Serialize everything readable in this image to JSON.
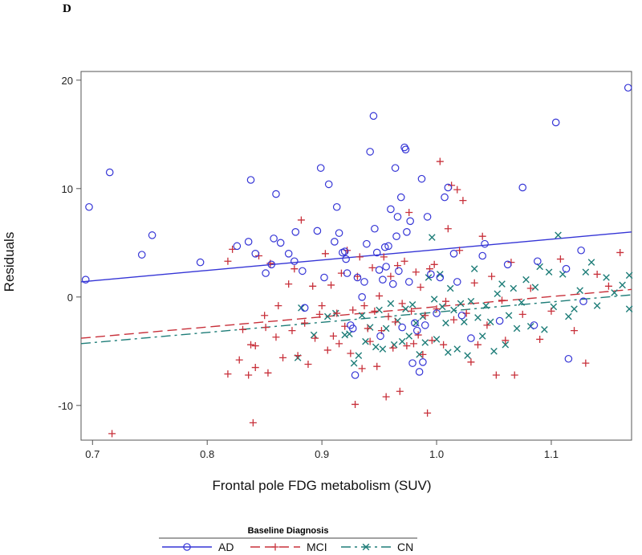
{
  "panel_label": "D",
  "chart_data": {
    "type": "scatter",
    "title": "",
    "xlabel": "Frontal pole FDG metabolism (SUV)",
    "ylabel": "Residuals",
    "xlim": [
      0.69,
      1.17
    ],
    "ylim": [
      -13.2,
      20.8
    ],
    "xticks": [
      0.7,
      0.8,
      0.9,
      1.0,
      1.1
    ],
    "xtick_labels": [
      "0.7",
      "0.8",
      "0.9",
      "1.0",
      "1.1"
    ],
    "yticks": [
      -10,
      0,
      10,
      20
    ],
    "ytick_labels": [
      "-10",
      "0",
      "10",
      "20"
    ],
    "grid": false,
    "legend": {
      "title": "Baseline Diagnosis",
      "position": "bottom",
      "entries": [
        "AD",
        "MCI",
        "CN"
      ]
    },
    "series": [
      {
        "name": "AD",
        "color": "#3535d6",
        "marker": "circle",
        "line_style": "solid",
        "fit": [
          [
            0.69,
            1.4
          ],
          [
            1.17,
            6.0
          ]
        ],
        "points": [
          [
            0.694,
            1.6
          ],
          [
            0.697,
            8.3
          ],
          [
            0.715,
            11.5
          ],
          [
            0.743,
            3.9
          ],
          [
            0.752,
            5.7
          ],
          [
            0.794,
            3.2
          ],
          [
            0.826,
            4.7
          ],
          [
            0.836,
            5.1
          ],
          [
            0.838,
            10.8
          ],
          [
            0.842,
            4.0
          ],
          [
            0.851,
            2.2
          ],
          [
            0.856,
            3.0
          ],
          [
            0.858,
            5.4
          ],
          [
            0.86,
            9.5
          ],
          [
            0.864,
            5.0
          ],
          [
            0.871,
            4.0
          ],
          [
            0.876,
            3.3
          ],
          [
            0.877,
            6.0
          ],
          [
            0.883,
            2.4
          ],
          [
            0.885,
            -1.0
          ],
          [
            0.896,
            6.1
          ],
          [
            0.899,
            11.9
          ],
          [
            0.902,
            1.8
          ],
          [
            0.906,
            10.4
          ],
          [
            0.911,
            5.1
          ],
          [
            0.913,
            8.3
          ],
          [
            0.915,
            5.9
          ],
          [
            0.918,
            4.1
          ],
          [
            0.92,
            4.2
          ],
          [
            0.921,
            3.5
          ],
          [
            0.922,
            2.2
          ],
          [
            0.925,
            -2.6
          ],
          [
            0.927,
            -2.9
          ],
          [
            0.929,
            -7.2
          ],
          [
            0.931,
            1.8
          ],
          [
            0.935,
            0.0
          ],
          [
            0.937,
            1.4
          ],
          [
            0.939,
            4.9
          ],
          [
            0.942,
            13.4
          ],
          [
            0.945,
            16.7
          ],
          [
            0.946,
            6.3
          ],
          [
            0.948,
            4.1
          ],
          [
            0.95,
            2.5
          ],
          [
            0.951,
            -3.6
          ],
          [
            0.953,
            1.6
          ],
          [
            0.955,
            4.6
          ],
          [
            0.956,
            2.8
          ],
          [
            0.958,
            4.7
          ],
          [
            0.96,
            8.1
          ],
          [
            0.962,
            1.2
          ],
          [
            0.964,
            11.9
          ],
          [
            0.965,
            5.6
          ],
          [
            0.966,
            7.4
          ],
          [
            0.967,
            2.4
          ],
          [
            0.969,
            9.2
          ],
          [
            0.97,
            -2.8
          ],
          [
            0.972,
            13.8
          ],
          [
            0.973,
            13.6
          ],
          [
            0.974,
            6.0
          ],
          [
            0.976,
            1.4
          ],
          [
            0.977,
            7.0
          ],
          [
            0.979,
            -6.1
          ],
          [
            0.981,
            -2.4
          ],
          [
            0.983,
            -3.1
          ],
          [
            0.985,
            -6.9
          ],
          [
            0.987,
            10.9
          ],
          [
            0.988,
            -6.0
          ],
          [
            0.99,
            -2.6
          ],
          [
            0.992,
            7.4
          ],
          [
            0.995,
            2.1
          ],
          [
            1.0,
            -1.5
          ],
          [
            1.003,
            1.8
          ],
          [
            1.007,
            9.2
          ],
          [
            1.01,
            10.1
          ],
          [
            1.015,
            4.0
          ],
          [
            1.018,
            1.4
          ],
          [
            1.022,
            -1.7
          ],
          [
            1.03,
            -3.8
          ],
          [
            1.04,
            3.8
          ],
          [
            1.042,
            4.9
          ],
          [
            1.055,
            -2.2
          ],
          [
            1.062,
            3.0
          ],
          [
            1.075,
            10.1
          ],
          [
            1.085,
            -2.6
          ],
          [
            1.088,
            3.3
          ],
          [
            1.104,
            16.1
          ],
          [
            1.113,
            2.6
          ],
          [
            1.115,
            -5.7
          ],
          [
            1.126,
            4.3
          ],
          [
            1.128,
            -0.4
          ],
          [
            1.167,
            19.3
          ]
        ]
      },
      {
        "name": "MCI",
        "color": "#c8303a",
        "marker": "plus",
        "line_style": "dashed",
        "fit": [
          [
            0.69,
            -3.8
          ],
          [
            1.17,
            0.7
          ]
        ],
        "points": [
          [
            0.717,
            -12.6
          ],
          [
            0.818,
            3.3
          ],
          [
            0.818,
            -7.1
          ],
          [
            0.822,
            4.4
          ],
          [
            0.828,
            -5.8
          ],
          [
            0.831,
            -3.0
          ],
          [
            0.836,
            -7.2
          ],
          [
            0.838,
            -4.4
          ],
          [
            0.84,
            -11.6
          ],
          [
            0.842,
            -4.5
          ],
          [
            0.842,
            -6.5
          ],
          [
            0.845,
            3.8
          ],
          [
            0.85,
            -1.7
          ],
          [
            0.851,
            -2.8
          ],
          [
            0.853,
            -7.0
          ],
          [
            0.855,
            3.1
          ],
          [
            0.86,
            -3.7
          ],
          [
            0.862,
            -0.8
          ],
          [
            0.866,
            -5.6
          ],
          [
            0.871,
            1.2
          ],
          [
            0.874,
            -3.1
          ],
          [
            0.876,
            2.6
          ],
          [
            0.879,
            -5.4
          ],
          [
            0.882,
            7.1
          ],
          [
            0.885,
            -2.4
          ],
          [
            0.888,
            -6.2
          ],
          [
            0.892,
            1.0
          ],
          [
            0.894,
            -3.8
          ],
          [
            0.898,
            -1.6
          ],
          [
            0.9,
            -0.8
          ],
          [
            0.903,
            4.0
          ],
          [
            0.905,
            -4.9
          ],
          [
            0.908,
            1.1
          ],
          [
            0.91,
            -3.6
          ],
          [
            0.913,
            -1.5
          ],
          [
            0.915,
            -4.3
          ],
          [
            0.917,
            2.2
          ],
          [
            0.92,
            -2.7
          ],
          [
            0.922,
            4.3
          ],
          [
            0.925,
            -5.2
          ],
          [
            0.927,
            -1.2
          ],
          [
            0.929,
            -9.9
          ],
          [
            0.931,
            1.9
          ],
          [
            0.933,
            3.7
          ],
          [
            0.935,
            -6.6
          ],
          [
            0.937,
            -0.8
          ],
          [
            0.94,
            -2.9
          ],
          [
            0.942,
            -4.1
          ],
          [
            0.944,
            2.7
          ],
          [
            0.946,
            -1.3
          ],
          [
            0.948,
            -6.4
          ],
          [
            0.95,
            0.1
          ],
          [
            0.952,
            -3.1
          ],
          [
            0.954,
            3.7
          ],
          [
            0.956,
            -9.2
          ],
          [
            0.958,
            -1.8
          ],
          [
            0.96,
            1.9
          ],
          [
            0.962,
            -4.7
          ],
          [
            0.964,
            -2.3
          ],
          [
            0.966,
            2.9
          ],
          [
            0.968,
            -8.7
          ],
          [
            0.97,
            -0.6
          ],
          [
            0.972,
            3.3
          ],
          [
            0.974,
            -4.5
          ],
          [
            0.976,
            7.8
          ],
          [
            0.978,
            -1.3
          ],
          [
            0.98,
            -4.3
          ],
          [
            0.982,
            2.3
          ],
          [
            0.984,
            -3.5
          ],
          [
            0.986,
            0.9
          ],
          [
            0.988,
            -5.3
          ],
          [
            0.99,
            -1.7
          ],
          [
            0.992,
            -10.7
          ],
          [
            0.994,
            2.6
          ],
          [
            0.996,
            -4.0
          ],
          [
            0.998,
            3.0
          ],
          [
            1.0,
            -1.1
          ],
          [
            1.003,
            12.5
          ],
          [
            1.006,
            -4.4
          ],
          [
            1.008,
            -0.4
          ],
          [
            1.01,
            6.3
          ],
          [
            1.013,
            10.3
          ],
          [
            1.015,
            -2.1
          ],
          [
            1.018,
            9.9
          ],
          [
            1.02,
            4.3
          ],
          [
            1.023,
            8.9
          ],
          [
            1.026,
            -1.5
          ],
          [
            1.03,
            -6.0
          ],
          [
            1.033,
            1.3
          ],
          [
            1.036,
            -4.4
          ],
          [
            1.04,
            5.6
          ],
          [
            1.044,
            -2.6
          ],
          [
            1.048,
            1.9
          ],
          [
            1.052,
            -7.2
          ],
          [
            1.057,
            -0.3
          ],
          [
            1.06,
            -4.0
          ],
          [
            1.065,
            3.2
          ],
          [
            1.068,
            -7.2
          ],
          [
            1.075,
            -1.6
          ],
          [
            1.082,
            0.8
          ],
          [
            1.09,
            -3.9
          ],
          [
            1.1,
            -1.3
          ],
          [
            1.108,
            3.5
          ],
          [
            1.12,
            -3.1
          ],
          [
            1.13,
            -6.1
          ],
          [
            1.14,
            2.1
          ],
          [
            1.15,
            1.0
          ],
          [
            1.16,
            4.1
          ]
        ]
      },
      {
        "name": "CN",
        "color": "#1e7d78",
        "marker": "x",
        "line_style": "dashdot",
        "fit": [
          [
            0.69,
            -4.3
          ],
          [
            1.17,
            0.2
          ]
        ],
        "points": [
          [
            0.879,
            -5.6
          ],
          [
            0.882,
            -1.0
          ],
          [
            0.893,
            -3.5
          ],
          [
            0.905,
            -1.8
          ],
          [
            0.912,
            -1.5
          ],
          [
            0.92,
            -3.5
          ],
          [
            0.924,
            -3.4
          ],
          [
            0.928,
            -6.1
          ],
          [
            0.932,
            -5.4
          ],
          [
            0.935,
            -1.7
          ],
          [
            0.938,
            -4.1
          ],
          [
            0.942,
            -2.8
          ],
          [
            0.947,
            -4.6
          ],
          [
            0.95,
            -1.2
          ],
          [
            0.953,
            -4.8
          ],
          [
            0.956,
            -2.9
          ],
          [
            0.96,
            -0.6
          ],
          [
            0.963,
            -4.4
          ],
          [
            0.966,
            -2.2
          ],
          [
            0.97,
            -4.1
          ],
          [
            0.973,
            -1.1
          ],
          [
            0.976,
            -3.6
          ],
          [
            0.979,
            -0.7
          ],
          [
            0.982,
            -2.4
          ],
          [
            0.985,
            -5.3
          ],
          [
            0.988,
            -1.8
          ],
          [
            0.99,
            -4.2
          ],
          [
            0.993,
            1.8
          ],
          [
            0.996,
            5.5
          ],
          [
            0.998,
            -0.2
          ],
          [
            1.0,
            -3.9
          ],
          [
            1.003,
            2.1
          ],
          [
            1.005,
            -0.9
          ],
          [
            1.008,
            -2.4
          ],
          [
            1.01,
            -5.1
          ],
          [
            1.012,
            0.8
          ],
          [
            1.015,
            -1.2
          ],
          [
            1.018,
            -4.8
          ],
          [
            1.021,
            -0.6
          ],
          [
            1.024,
            -2.3
          ],
          [
            1.027,
            -5.4
          ],
          [
            1.03,
            -0.4
          ],
          [
            1.033,
            2.6
          ],
          [
            1.036,
            -1.9
          ],
          [
            1.04,
            -3.6
          ],
          [
            1.043,
            -0.8
          ],
          [
            1.047,
            -2.3
          ],
          [
            1.05,
            -5.0
          ],
          [
            1.053,
            0.3
          ],
          [
            1.057,
            1.2
          ],
          [
            1.06,
            -4.4
          ],
          [
            1.063,
            -1.7
          ],
          [
            1.067,
            0.8
          ],
          [
            1.07,
            -2.9
          ],
          [
            1.074,
            -0.5
          ],
          [
            1.078,
            1.6
          ],
          [
            1.082,
            -2.7
          ],
          [
            1.086,
            0.9
          ],
          [
            1.09,
            2.8
          ],
          [
            1.094,
            -3.0
          ],
          [
            1.098,
            2.3
          ],
          [
            1.102,
            -0.9
          ],
          [
            1.106,
            5.7
          ],
          [
            1.11,
            2.1
          ],
          [
            1.115,
            -1.8
          ],
          [
            1.12,
            -1.1
          ],
          [
            1.125,
            0.6
          ],
          [
            1.13,
            2.3
          ],
          [
            1.135,
            3.2
          ],
          [
            1.14,
            -0.8
          ],
          [
            1.148,
            1.8
          ],
          [
            1.155,
            0.4
          ],
          [
            1.162,
            1.1
          ],
          [
            1.168,
            2.0
          ],
          [
            1.168,
            -1.1
          ]
        ]
      }
    ]
  }
}
